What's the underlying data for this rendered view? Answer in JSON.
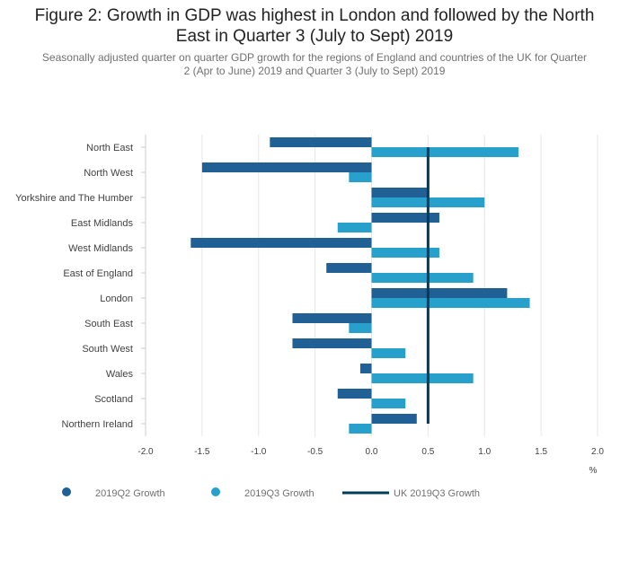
{
  "chart_data": {
    "type": "bar",
    "orientation": "horizontal",
    "title_lines": [
      "Figure 2: Growth in GDP was highest in London and followed by the North",
      "East in Quarter 3 (July to Sept) 2019"
    ],
    "subtitle_lines": [
      "Seasonally adjusted quarter on quarter GDP growth for the regions of England and countries of the UK for Quarter",
      "2 (Apr to June) 2019 and Quarter 3 (July to Sept) 2019"
    ],
    "categories": [
      "North East",
      "North West",
      "Yorkshire and The Humber",
      "East Midlands",
      "West Midlands",
      "East of England",
      "London",
      "South East",
      "South West",
      "Wales",
      "Scotland",
      "Northern Ireland"
    ],
    "series": [
      {
        "name": "2019Q2 Growth",
        "color": "#206095",
        "values": [
          -0.9,
          -1.5,
          0.5,
          0.6,
          -1.6,
          -0.4,
          1.2,
          -0.7,
          -0.7,
          -0.1,
          -0.3,
          0.4
        ]
      },
      {
        "name": "2019Q3 Growth",
        "color": "#27a0cc",
        "values": [
          1.3,
          -0.2,
          1.0,
          -0.3,
          0.6,
          0.9,
          1.4,
          -0.2,
          0.3,
          0.9,
          0.3,
          -0.2
        ]
      }
    ],
    "reference_line": {
      "name": "UK 2019Q3 Growth",
      "value": 0.5,
      "color": "#003c57"
    },
    "xlim": [
      -2.0,
      2.0
    ],
    "x_ticks": [
      "-2.0",
      "-1.5",
      "-1.0",
      "-0.5",
      "0.0",
      "0.5",
      "1.0",
      "1.5",
      "2.0"
    ],
    "x_tick_values": [
      -2.0,
      -1.5,
      -1.0,
      -0.5,
      0.0,
      0.5,
      1.0,
      1.5,
      2.0
    ],
    "x_unit": "%",
    "grid": true,
    "legend_position": "bottom-left"
  }
}
